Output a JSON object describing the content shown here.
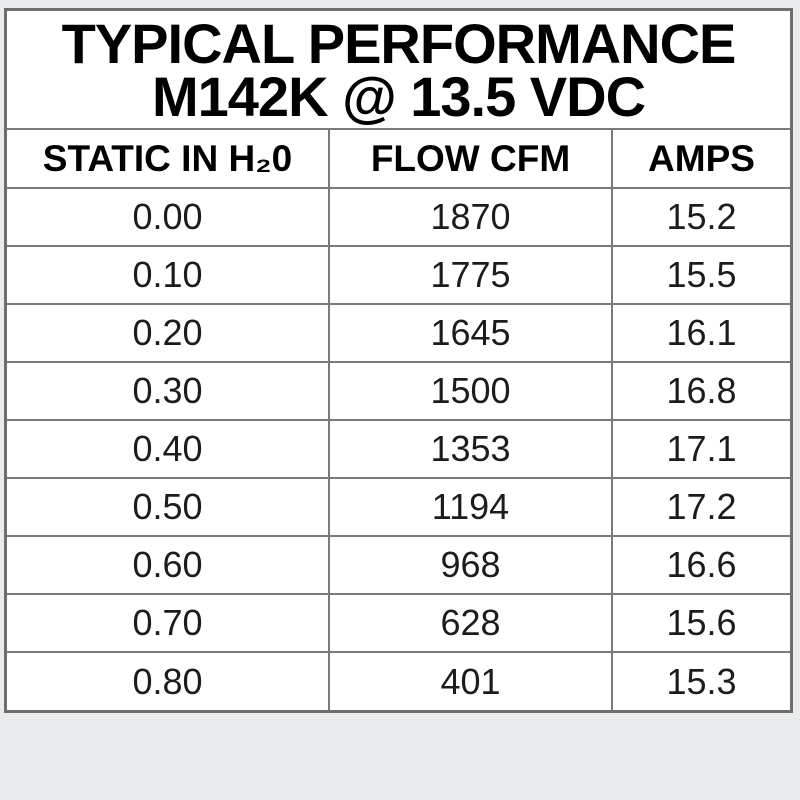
{
  "title": {
    "line1": "TYPICAL PERFORMANCE",
    "line2": "M142K @ 13.5 VDC"
  },
  "table": {
    "columns": [
      "STATIC IN H₂0",
      "FLOW CFM",
      "AMPS"
    ],
    "rows": [
      [
        "0.00",
        "1870",
        "15.2"
      ],
      [
        "0.10",
        "1775",
        "15.5"
      ],
      [
        "0.20",
        "1645",
        "16.1"
      ],
      [
        "0.30",
        "1500",
        "16.8"
      ],
      [
        "0.40",
        "1353",
        "17.1"
      ],
      [
        "0.50",
        "1194",
        "17.2"
      ],
      [
        "0.60",
        "968",
        "16.6"
      ],
      [
        "0.70",
        "628",
        "15.6"
      ],
      [
        "0.80",
        "401",
        "15.3"
      ]
    ]
  },
  "chart_data": {
    "type": "table",
    "title": "TYPICAL PERFORMANCE M142K @ 13.5 VDC",
    "columns": [
      "STATIC IN H₂0",
      "FLOW CFM",
      "AMPS"
    ],
    "static_in_h2o": [
      0.0,
      0.1,
      0.2,
      0.3,
      0.4,
      0.5,
      0.6,
      0.7,
      0.8
    ],
    "series": [
      {
        "name": "FLOW CFM",
        "values": [
          1870,
          1775,
          1645,
          1500,
          1353,
          1194,
          968,
          628,
          401
        ]
      },
      {
        "name": "AMPS",
        "values": [
          15.2,
          15.5,
          16.1,
          16.8,
          17.1,
          17.2,
          16.6,
          15.6,
          15.3
        ]
      }
    ]
  },
  "colors": {
    "page-bg": "#e9ebec",
    "cell-bg": "#ffffff",
    "border": "#7a7a7a",
    "outer-border": "#6e6e6e",
    "text": "#000000",
    "data-text": "#1c1c1c"
  }
}
